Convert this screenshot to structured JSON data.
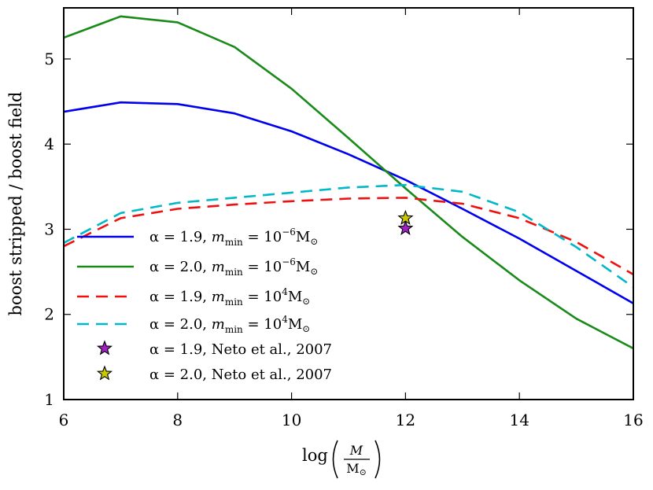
{
  "chart_data": {
    "type": "line",
    "title": "",
    "xlabel_parts": {
      "prefix": "log",
      "numerator": "M",
      "denominator": "M",
      "denominator_symbol": "⊙"
    },
    "ylabel": "boost stripped / boost field",
    "xlim": [
      6,
      16
    ],
    "ylim": [
      1,
      5.6
    ],
    "xticks": [
      6,
      8,
      10,
      12,
      14,
      16
    ],
    "yticks": [
      1,
      2,
      3,
      4,
      5
    ],
    "grid": false,
    "legend_position": "lower-left",
    "series": [
      {
        "name": "α = 1.9, m_min = 10^-6 M⊙",
        "legend": {
          "alpha": "α = 1.9,",
          "m": "m",
          "sub": "min",
          "eq": " = 10",
          "sup": "−6",
          "unit": "M",
          "sun": "⊙"
        },
        "color": "#0000ee",
        "style": "solid",
        "x": [
          6,
          7,
          8,
          9,
          10,
          11,
          12,
          13,
          14,
          15,
          16
        ],
        "y": [
          4.38,
          4.49,
          4.47,
          4.36,
          4.15,
          3.88,
          3.58,
          3.24,
          2.89,
          2.51,
          2.13
        ]
      },
      {
        "name": "α = 2.0, m_min = 10^-6 M⊙",
        "legend": {
          "alpha": "α = 2.0,",
          "m": "m",
          "sub": "min",
          "eq": " = 10",
          "sup": "−6",
          "unit": "M",
          "sun": "⊙"
        },
        "color": "#1a8a1a",
        "style": "solid",
        "x": [
          6,
          7,
          8,
          9,
          10,
          11,
          12,
          13,
          14,
          15,
          16
        ],
        "y": [
          5.25,
          5.5,
          5.43,
          5.14,
          4.65,
          4.07,
          3.48,
          2.91,
          2.4,
          1.95,
          1.6
        ]
      },
      {
        "name": "α = 1.9, m_min = 10^4 M⊙",
        "legend": {
          "alpha": "α = 1.9,",
          "m": "m",
          "sub": "min",
          "eq": " = 10",
          "sup": "4",
          "unit": "M",
          "sun": "⊙"
        },
        "color": "#ee1111",
        "style": "dashed",
        "x": [
          6,
          7,
          8,
          9,
          10,
          11,
          12,
          13,
          14,
          15,
          16
        ],
        "y": [
          2.8,
          3.13,
          3.24,
          3.29,
          3.33,
          3.36,
          3.37,
          3.3,
          3.13,
          2.85,
          2.47
        ]
      },
      {
        "name": "α = 2.0, m_min = 10^4 M⊙",
        "legend": {
          "alpha": "α = 2.0,",
          "m": "m",
          "sub": "min",
          "eq": " = 10",
          "sup": "4",
          "unit": "M",
          "sun": "⊙"
        },
        "color": "#00b8c8",
        "style": "dashed",
        "x": [
          6,
          7,
          8,
          9,
          10,
          11,
          12,
          13,
          14,
          15,
          16
        ],
        "y": [
          2.84,
          3.19,
          3.31,
          3.37,
          3.43,
          3.49,
          3.52,
          3.44,
          3.2,
          2.79,
          2.32
        ]
      }
    ],
    "points": [
      {
        "name": "α = 1.9, Neto et al., 2007",
        "x": 12,
        "y": 3.01,
        "color": "#a020c0",
        "marker": "star"
      },
      {
        "name": "α = 2.0, Neto et al., 2007",
        "x": 12,
        "y": 3.13,
        "color": "#c8c800",
        "marker": "star"
      }
    ]
  }
}
